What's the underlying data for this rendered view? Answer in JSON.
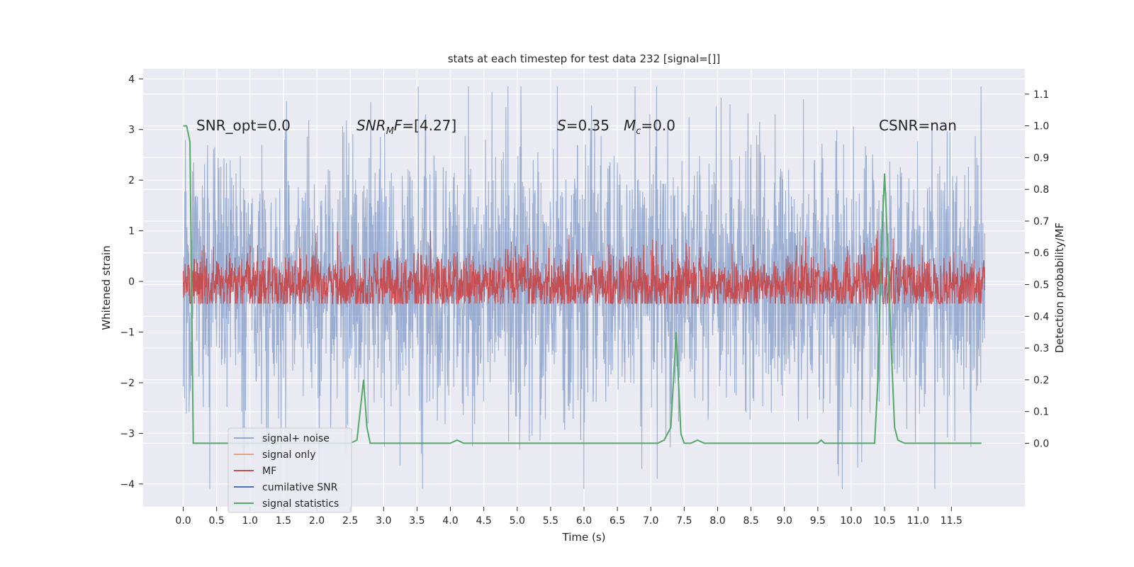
{
  "chart_data": {
    "type": "line",
    "title": "stats at each timestep for test data 232 [signal=[]]",
    "xlabel": "Time (s)",
    "ylabel": "Whitened strain",
    "ylabel_right": "Detection probability/MF",
    "xlim": [
      -0.6,
      12.6
    ],
    "ylim": [
      -4.45,
      4.2
    ],
    "ylim_right": [
      -0.2,
      1.18
    ],
    "x_ticks": [
      0.0,
      0.5,
      1.0,
      1.5,
      2.0,
      2.5,
      3.0,
      3.5,
      4.0,
      4.5,
      5.0,
      5.5,
      6.0,
      6.5,
      7.0,
      7.5,
      8.0,
      8.5,
      9.0,
      9.5,
      10.0,
      10.5,
      11.0,
      11.5
    ],
    "x_tick_labels": [
      "0.0",
      "0.5",
      "1.0",
      "1.5",
      "2.0",
      "2.5",
      "3.0",
      "3.5",
      "4.0",
      "4.5",
      "5.0",
      "5.5",
      "6.0",
      "6.5",
      "7.0",
      "7.5",
      "8.0",
      "8.5",
      "9.0",
      "9.5",
      "10.0",
      "10.5",
      "11.0",
      "11.5"
    ],
    "y_ticks": [
      -4,
      -3,
      -2,
      -1,
      0,
      1,
      2,
      3,
      4
    ],
    "y_tick_labels": [
      "−4",
      "−3",
      "−2",
      "−1",
      "0",
      "1",
      "2",
      "3",
      "4"
    ],
    "y_ticks_right": [
      0.0,
      0.1,
      0.2,
      0.3,
      0.4,
      0.5,
      0.6,
      0.7,
      0.8,
      0.9,
      1.0,
      1.1
    ],
    "y_tick_labels_right": [
      "0.0",
      "0.1",
      "0.2",
      "0.3",
      "0.4",
      "0.5",
      "0.6",
      "0.7",
      "0.8",
      "0.9",
      "1.0",
      "1.1"
    ],
    "grid": true,
    "legend_placement": "lower-left",
    "annotations": {
      "snr_opt": "SNR_opt=0.0",
      "snr_mf_main": "SNR",
      "snr_mf_sub": "M",
      "snr_mf_rest": "F",
      "snr_mf_value": "=[4.27]",
      "s_label": "S",
      "s_value": "=0.35",
      "mc_label": "M",
      "mc_sub": "c",
      "mc_value": "=0.0",
      "csnr": "CSNR=nan"
    },
    "series": [
      {
        "name": "signal+ noise",
        "color": "#4c72b0",
        "axis": "left",
        "style": "noise",
        "x_range": [
          0.0,
          12.0
        ],
        "approx_amplitude": 1.3,
        "extreme_min": -4.1,
        "extreme_max": 3.85
      },
      {
        "name": "signal only",
        "color": "#dd8452",
        "axis": "left",
        "values": []
      },
      {
        "name": "MF",
        "color": "#c44e52",
        "axis": "right",
        "style": "noise",
        "x_range": [
          0.0,
          12.0
        ],
        "center": 0.5,
        "approx_amplitude": 0.05,
        "extreme_max": 0.67,
        "extreme_min": 0.44
      },
      {
        "name": "cumilative SNR",
        "color": "#4c72b0",
        "axis": "left",
        "values": []
      },
      {
        "name": "signal statistics",
        "color": "#55a868",
        "axis": "right",
        "x": [
          0.0,
          0.05,
          0.1,
          0.15,
          0.2,
          0.3,
          2.5,
          2.6,
          2.7,
          2.75,
          2.8,
          2.85,
          4.0,
          4.1,
          4.2,
          7.1,
          7.2,
          7.3,
          7.38,
          7.45,
          7.5,
          7.6,
          7.7,
          7.8,
          7.9,
          8.0,
          8.5,
          9.0,
          9.5,
          9.55,
          9.6,
          9.7,
          10.35,
          10.4,
          10.45,
          10.5,
          10.55,
          10.6,
          10.65,
          10.7,
          10.8,
          11.0,
          11.5,
          11.95
        ],
        "y": [
          1.0,
          1.0,
          0.95,
          0.0,
          0.0,
          0.0,
          0.0,
          0.01,
          0.2,
          0.05,
          0.0,
          0.0,
          0.0,
          0.01,
          0.0,
          0.0,
          0.01,
          0.05,
          0.35,
          0.03,
          0.0,
          0.0,
          0.01,
          0.0,
          0.0,
          0.0,
          0.0,
          0.0,
          0.0,
          0.01,
          0.0,
          0.0,
          0.0,
          0.2,
          0.6,
          0.85,
          0.6,
          0.3,
          0.05,
          0.01,
          0.0,
          0.0,
          0.0,
          0.0
        ]
      }
    ]
  }
}
